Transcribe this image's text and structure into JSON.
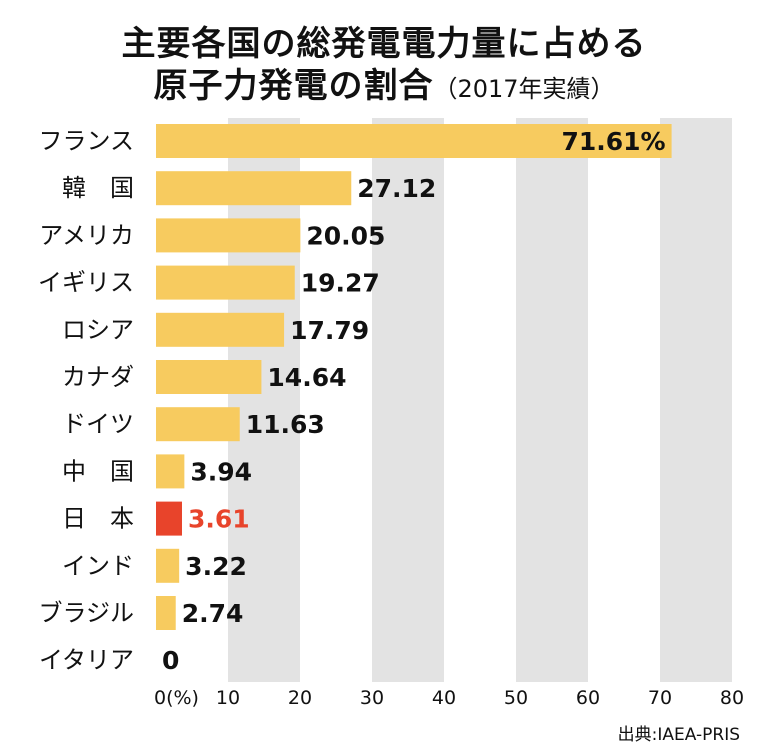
{
  "header": {
    "title_line1": "主要各国の総発電電力量に占める",
    "title_line2": "原子力発電の割合",
    "subtitle": "（2017年実績）"
  },
  "source": "出典:IAEA-PRIS",
  "colors": {
    "bar": "#f7cb5f",
    "highlight_bar": "#e8442b",
    "highlight_label": "#e8442b",
    "band": "#e3e3e3",
    "text": "#111111"
  },
  "chart_data": {
    "type": "bar",
    "orientation": "horizontal",
    "categories": [
      "フランス",
      "韓　国",
      "アメリカ",
      "イギリス",
      "ロシア",
      "カナダ",
      "ドイツ",
      "中　国",
      "日　本",
      "インド",
      "ブラジル",
      "イタリア"
    ],
    "values": [
      71.61,
      27.12,
      20.05,
      19.27,
      17.79,
      14.64,
      11.63,
      3.94,
      3.61,
      3.22,
      2.74,
      0
    ],
    "value_labels": [
      "71.61%",
      "27.12",
      "20.05",
      "19.27",
      "17.79",
      "14.64",
      "11.63",
      "3.94",
      "3.61",
      "3.22",
      "2.74",
      "0"
    ],
    "highlight_category": "日　本",
    "xlim": [
      0,
      80
    ],
    "x_ticks": [
      0,
      10,
      20,
      30,
      40,
      50,
      60,
      70,
      80
    ],
    "x_tick_labels": [
      "0(%)",
      "10",
      "20",
      "30",
      "40",
      "50",
      "60",
      "70",
      "80"
    ],
    "background": "alternating gray bands every 10 units",
    "grid": false
  }
}
